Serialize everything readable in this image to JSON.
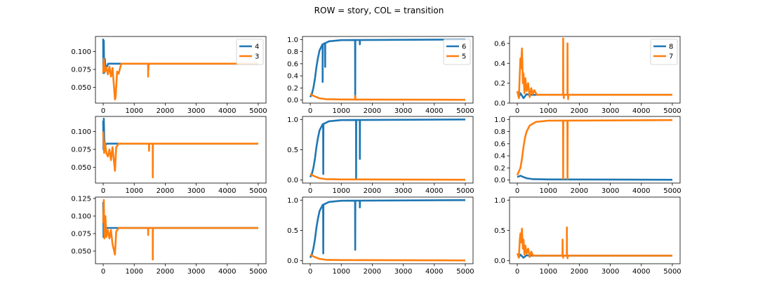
{
  "figure": {
    "suptitle": "ROW = story, COL = transition",
    "colors": {
      "blue": "#1f77b4",
      "orange": "#ff7f0e"
    }
  },
  "chart_data": [
    {
      "type": "line",
      "row": 0,
      "col": 0,
      "xlim": [
        -250,
        5250
      ],
      "ylim": [
        0.028,
        0.121
      ],
      "xticks": [
        0,
        1000,
        2000,
        3000,
        4000,
        5000
      ],
      "yticks": [
        0.05,
        0.075,
        0.1
      ],
      "ytick_labels": [
        "0.050",
        "0.075",
        "0.100"
      ],
      "legend": "upper right",
      "series": [
        {
          "name": "4",
          "color": "blue",
          "base": 0.083,
          "noise": [
            [
              0,
              0.118
            ],
            [
              5,
              0.07
            ],
            [
              10,
              0.1
            ],
            [
              20,
              0.115
            ],
            [
              30,
              0.07
            ],
            [
              50,
              0.09
            ],
            [
              80,
              0.075
            ]
          ]
        },
        {
          "name": "3",
          "color": "orange",
          "base": 0.083,
          "noise": [
            [
              0,
              0.07
            ],
            [
              20,
              0.09
            ],
            [
              60,
              0.072
            ],
            [
              100,
              0.078
            ],
            [
              150,
              0.068
            ],
            [
              200,
              0.079
            ],
            [
              250,
              0.065
            ],
            [
              300,
              0.077
            ],
            [
              350,
              0.05
            ],
            [
              380,
              0.033
            ],
            [
              400,
              0.036
            ],
            [
              450,
              0.072
            ],
            [
              500,
              0.069
            ],
            [
              1450,
              0.065
            ],
            [
              1460,
              0.075
            ]
          ]
        }
      ]
    },
    {
      "type": "line",
      "row": 0,
      "col": 1,
      "xlim": [
        -250,
        5250
      ],
      "ylim": [
        -0.05,
        1.05
      ],
      "xticks": [
        0,
        1000,
        2000,
        3000,
        4000,
        5000
      ],
      "yticks": [
        0,
        0.2,
        0.4,
        0.6,
        0.8,
        1.0
      ],
      "ytick_labels": [
        "0.0",
        "0.2",
        "0.4",
        "0.6",
        "0.8",
        "1.0"
      ],
      "legend": "upper right",
      "series": [
        {
          "name": "6",
          "color": "blue",
          "curve": [
            [
              0,
              0.05
            ],
            [
              50,
              0.1
            ],
            [
              100,
              0.2
            ],
            [
              150,
              0.35
            ],
            [
              200,
              0.55
            ],
            [
              250,
              0.7
            ],
            [
              300,
              0.82
            ],
            [
              400,
              0.92
            ],
            [
              600,
              0.97
            ],
            [
              1000,
              0.99
            ],
            [
              5000,
              1.0
            ]
          ],
          "dips": [
            [
              400,
              0.3
            ],
            [
              480,
              0.55
            ],
            [
              1450,
              0.05
            ],
            [
              1600,
              0.92
            ]
          ]
        },
        {
          "name": "5",
          "color": "orange",
          "curve": [
            [
              0,
              0.1
            ],
            [
              100,
              0.07
            ],
            [
              200,
              0.05
            ],
            [
              300,
              0.03
            ],
            [
              500,
              0.015
            ],
            [
              1000,
              0.01
            ],
            [
              5000,
              0.005
            ]
          ],
          "dips": [
            [
              1450,
              0.07
            ]
          ]
        }
      ]
    },
    {
      "type": "line",
      "row": 0,
      "col": 2,
      "xlim": [
        -250,
        5250
      ],
      "ylim": [
        0,
        0.67
      ],
      "xticks": [
        0,
        1000,
        2000,
        3000,
        4000,
        5000
      ],
      "yticks": [
        0,
        0.2,
        0.4,
        0.6
      ],
      "ytick_labels": [
        "0.0",
        "0.2",
        "0.4",
        "0.6"
      ],
      "legend": "upper right",
      "series": [
        {
          "name": "8",
          "color": "blue",
          "base": 0.083,
          "noise": [
            [
              50,
              0.06
            ],
            [
              100,
              0.1
            ],
            [
              200,
              0.05
            ],
            [
              300,
              0.09
            ]
          ]
        },
        {
          "name": "7",
          "color": "orange",
          "base": 0.083,
          "noise": [
            [
              0,
              0.12
            ],
            [
              50,
              0.05
            ],
            [
              80,
              0.3
            ],
            [
              100,
              0.45
            ],
            [
              120,
              0.35
            ],
            [
              150,
              0.55
            ],
            [
              180,
              0.2
            ],
            [
              200,
              0.3
            ],
            [
              230,
              0.1
            ],
            [
              260,
              0.25
            ],
            [
              300,
              0.12
            ],
            [
              350,
              0.2
            ],
            [
              400,
              0.06
            ],
            [
              450,
              0.15
            ],
            [
              500,
              0.09
            ],
            [
              550,
              0.13
            ],
            [
              1480,
              0.65
            ],
            [
              1500,
              0.05
            ],
            [
              1620,
              0.6
            ],
            [
              1640,
              0.04
            ]
          ]
        }
      ]
    },
    {
      "type": "line",
      "row": 1,
      "col": 0,
      "xlim": [
        -250,
        5250
      ],
      "ylim": [
        0.028,
        0.121
      ],
      "xticks": [
        0,
        1000,
        2000,
        3000,
        4000,
        5000
      ],
      "yticks": [
        0.05,
        0.075,
        0.1
      ],
      "ytick_labels": [
        "0.050",
        "0.075",
        "0.100"
      ],
      "legend": "none",
      "series": [
        {
          "name": "",
          "color": "blue",
          "base": 0.083,
          "noise": [
            [
              0,
              0.115
            ],
            [
              10,
              0.075
            ],
            [
              20,
              0.118
            ],
            [
              40,
              0.08
            ]
          ]
        },
        {
          "name": "",
          "color": "orange",
          "base": 0.083,
          "noise": [
            [
              0,
              0.1
            ],
            [
              30,
              0.07
            ],
            [
              60,
              0.085
            ],
            [
              100,
              0.07
            ],
            [
              150,
              0.065
            ],
            [
              200,
              0.075
            ],
            [
              250,
              0.06
            ],
            [
              300,
              0.078
            ],
            [
              380,
              0.045
            ],
            [
              420,
              0.078
            ],
            [
              1480,
              0.073
            ],
            [
              1600,
              0.036
            ]
          ]
        }
      ]
    },
    {
      "type": "line",
      "row": 1,
      "col": 1,
      "xlim": [
        -250,
        5250
      ],
      "ylim": [
        -0.05,
        1.05
      ],
      "xticks": [
        0,
        1000,
        2000,
        3000,
        4000,
        5000
      ],
      "yticks": [
        0,
        0.5,
        1.0
      ],
      "ytick_labels": [
        "0.0",
        "0.5",
        "1.0"
      ],
      "legend": "none",
      "series": [
        {
          "name": "",
          "color": "blue",
          "curve": [
            [
              0,
              0.05
            ],
            [
              50,
              0.1
            ],
            [
              100,
              0.2
            ],
            [
              150,
              0.35
            ],
            [
              200,
              0.55
            ],
            [
              250,
              0.7
            ],
            [
              300,
              0.82
            ],
            [
              400,
              0.92
            ],
            [
              600,
              0.97
            ],
            [
              1000,
              0.99
            ],
            [
              5000,
              1.0
            ]
          ],
          "dips": [
            [
              420,
              0.1
            ],
            [
              1480,
              0.02
            ],
            [
              1600,
              0.35
            ]
          ]
        },
        {
          "name": "",
          "color": "orange",
          "curve": [
            [
              0,
              0.1
            ],
            [
              100,
              0.07
            ],
            [
              200,
              0.05
            ],
            [
              300,
              0.03
            ],
            [
              500,
              0.015
            ],
            [
              1000,
              0.01
            ],
            [
              5000,
              0.005
            ]
          ],
          "dips": []
        }
      ]
    },
    {
      "type": "line",
      "row": 1,
      "col": 2,
      "xlim": [
        -250,
        5250
      ],
      "ylim": [
        -0.05,
        1.05
      ],
      "xticks": [
        0,
        1000,
        2000,
        3000,
        4000,
        5000
      ],
      "yticks": [
        0,
        0.2,
        0.4,
        0.6,
        0.8,
        1.0
      ],
      "ytick_labels": [
        "0.0",
        "0.2",
        "0.4",
        "0.6",
        "0.8",
        "1.0"
      ],
      "legend": "none",
      "series": [
        {
          "name": "",
          "color": "blue",
          "curve": [
            [
              0,
              0.05
            ],
            [
              100,
              0.07
            ],
            [
              200,
              0.05
            ],
            [
              300,
              0.03
            ],
            [
              500,
              0.015
            ],
            [
              1000,
              0.01
            ],
            [
              5000,
              0.005
            ]
          ],
          "dips": []
        },
        {
          "name": "",
          "color": "orange",
          "curve": [
            [
              0,
              0.08
            ],
            [
              100,
              0.2
            ],
            [
              150,
              0.35
            ],
            [
              200,
              0.55
            ],
            [
              250,
              0.7
            ],
            [
              300,
              0.8
            ],
            [
              400,
              0.9
            ],
            [
              600,
              0.96
            ],
            [
              1000,
              0.98
            ],
            [
              5000,
              0.99
            ]
          ],
          "dips": [
            [
              1480,
              0.02
            ],
            [
              1620,
              0.02
            ]
          ]
        }
      ]
    },
    {
      "type": "line",
      "row": 2,
      "col": 0,
      "xlim": [
        -250,
        5250
      ],
      "ylim": [
        0.032,
        0.127
      ],
      "xticks": [
        0,
        1000,
        2000,
        3000,
        4000,
        5000
      ],
      "yticks": [
        0.05,
        0.075,
        0.1,
        0.125
      ],
      "ytick_labels": [
        "0.050",
        "0.075",
        "0.100",
        "0.125"
      ],
      "legend": "none",
      "series": [
        {
          "name": "",
          "color": "blue",
          "base": 0.083,
          "noise": [
            [
              0,
              0.12
            ],
            [
              10,
              0.07
            ],
            [
              20,
              0.11
            ],
            [
              40,
              0.08
            ]
          ]
        },
        {
          "name": "",
          "color": "orange",
          "base": 0.083,
          "noise": [
            [
              0,
              0.09
            ],
            [
              20,
              0.123
            ],
            [
              40,
              0.068
            ],
            [
              70,
              0.1
            ],
            [
              100,
              0.07
            ],
            [
              150,
              0.08
            ],
            [
              200,
              0.068
            ],
            [
              250,
              0.08
            ],
            [
              300,
              0.06
            ],
            [
              380,
              0.045
            ],
            [
              420,
              0.078
            ],
            [
              1450,
              0.073
            ],
            [
              1600,
              0.038
            ]
          ]
        }
      ]
    },
    {
      "type": "line",
      "row": 2,
      "col": 1,
      "xlim": [
        -250,
        5250
      ],
      "ylim": [
        -0.05,
        1.05
      ],
      "xticks": [
        0,
        1000,
        2000,
        3000,
        4000,
        5000
      ],
      "yticks": [
        0,
        0.5,
        1.0
      ],
      "ytick_labels": [
        "0.0",
        "0.5",
        "1.0"
      ],
      "legend": "none",
      "series": [
        {
          "name": "",
          "color": "blue",
          "curve": [
            [
              0,
              0.05
            ],
            [
              50,
              0.1
            ],
            [
              100,
              0.2
            ],
            [
              150,
              0.35
            ],
            [
              200,
              0.55
            ],
            [
              250,
              0.7
            ],
            [
              300,
              0.82
            ],
            [
              400,
              0.92
            ],
            [
              600,
              0.97
            ],
            [
              1000,
              0.99
            ],
            [
              5000,
              1.0
            ]
          ],
          "dips": [
            [
              420,
              0.12
            ],
            [
              1450,
              0.18
            ],
            [
              1600,
              0.88
            ]
          ]
        },
        {
          "name": "",
          "color": "orange",
          "curve": [
            [
              0,
              0.1
            ],
            [
              100,
              0.07
            ],
            [
              200,
              0.05
            ],
            [
              300,
              0.03
            ],
            [
              500,
              0.015
            ],
            [
              1000,
              0.01
            ],
            [
              5000,
              0.005
            ]
          ],
          "dips": []
        }
      ]
    },
    {
      "type": "line",
      "row": 2,
      "col": 2,
      "xlim": [
        -250,
        5250
      ],
      "ylim": [
        -0.05,
        1.05
      ],
      "xticks": [
        0,
        1000,
        2000,
        3000,
        4000,
        5000
      ],
      "yticks": [
        0,
        0.5,
        1.0
      ],
      "ytick_labels": [
        "0.0",
        "0.5",
        "1.0"
      ],
      "legend": "none",
      "series": [
        {
          "name": "",
          "color": "blue",
          "base": 0.083,
          "noise": [
            [
              50,
              0.06
            ],
            [
              100,
              0.1
            ],
            [
              200,
              0.05
            ],
            [
              300,
              0.09
            ]
          ]
        },
        {
          "name": "",
          "color": "orange",
          "base": 0.083,
          "noise": [
            [
              0,
              0.12
            ],
            [
              50,
              0.05
            ],
            [
              80,
              0.35
            ],
            [
              100,
              0.45
            ],
            [
              120,
              0.3
            ],
            [
              150,
              0.53
            ],
            [
              180,
              0.2
            ],
            [
              200,
              0.35
            ],
            [
              230,
              0.1
            ],
            [
              260,
              0.25
            ],
            [
              300,
              0.12
            ],
            [
              350,
              0.2
            ],
            [
              400,
              0.06
            ],
            [
              450,
              0.15
            ],
            [
              500,
              0.09
            ],
            [
              1460,
              0.35
            ],
            [
              1480,
              0.05
            ],
            [
              1600,
              0.55
            ],
            [
              1620,
              0.04
            ]
          ]
        }
      ]
    }
  ]
}
